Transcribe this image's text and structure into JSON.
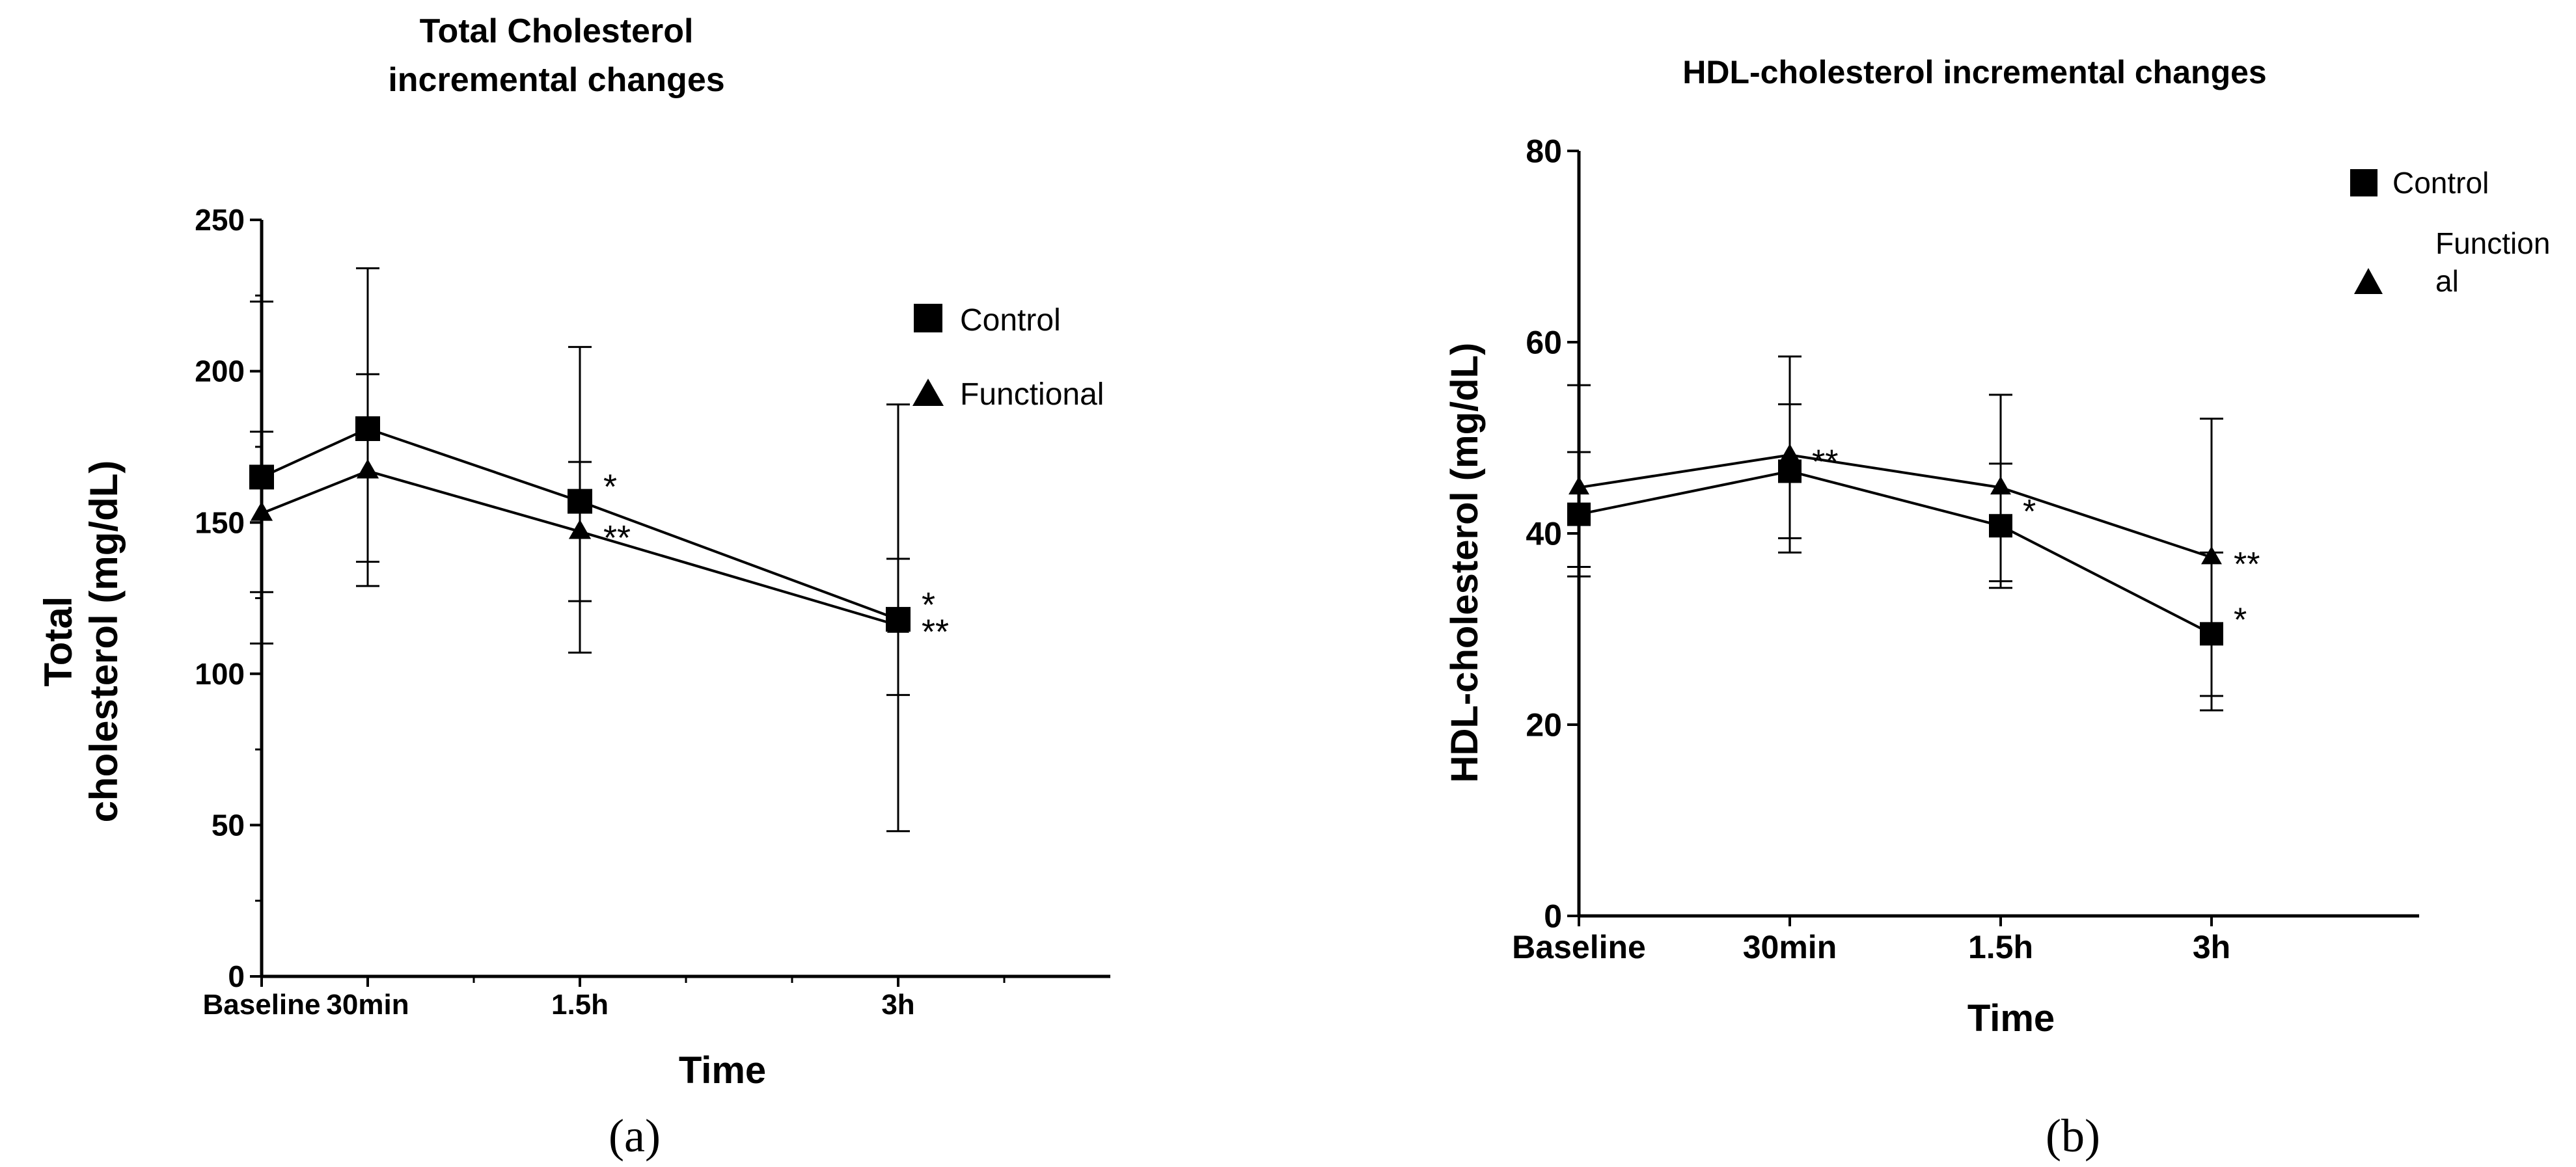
{
  "chart_data": [
    {
      "type": "line",
      "title_lines": [
        "Total Cholesterol",
        "incremental changes"
      ],
      "xlabel": "Time",
      "ylabel_lines": [
        "Total",
        "cholesterol  (mg/dL)"
      ],
      "categories": [
        "Baseline",
        "30min",
        "1.5h",
        "3h"
      ],
      "x": [
        0,
        0.5,
        1.5,
        3
      ],
      "xlim": [
        0,
        4
      ],
      "ylim": [
        0,
        250
      ],
      "yticks": [
        "0",
        "50",
        "100",
        "150",
        "200",
        "250"
      ],
      "grid": false,
      "legend_position": "top-right",
      "panel_label": "(a)",
      "series": [
        {
          "name": "Control",
          "marker": "square",
          "values": [
            165,
            181,
            157,
            118
          ],
          "error_high": [
            223,
            234,
            208,
            189
          ],
          "error_low": [
            110,
            129,
            107,
            48
          ],
          "annotations": [
            "",
            "",
            "*",
            "*"
          ]
        },
        {
          "name": "Functional",
          "marker": "triangle",
          "values": [
            153,
            167,
            147,
            116
          ],
          "error_high": [
            180,
            199,
            170,
            138
          ],
          "error_low": [
            127,
            137,
            124,
            93
          ],
          "annotations": [
            "",
            "",
            "**",
            "**"
          ]
        }
      ]
    },
    {
      "type": "line",
      "title_lines": [
        "HDL-cholesterol incremental changes"
      ],
      "xlabel": "Time",
      "ylabel_lines": [
        "HDL-cholesterol (mg/dL)"
      ],
      "categories": [
        "Baseline",
        "30min",
        "1.5h",
        "3h"
      ],
      "x": [
        0,
        1,
        2,
        3
      ],
      "xlim": [
        0,
        4
      ],
      "ylim": [
        0,
        80
      ],
      "yticks": [
        "0",
        "20",
        "40",
        "60",
        "80"
      ],
      "grid": false,
      "legend_position": "top-right",
      "panel_label": "(b)",
      "series": [
        {
          "name": "Control",
          "marker": "square",
          "values": [
            42,
            46.5,
            40.8,
            29.5
          ],
          "error_high": [
            48.5,
            53.5,
            47.3,
            38
          ],
          "error_low": [
            35.5,
            39.5,
            34.3,
            21.5
          ],
          "annotations": [
            "",
            "",
            "*",
            "*"
          ]
        },
        {
          "name": "Function\nal",
          "marker": "triangle",
          "values": [
            44.8,
            48.2,
            44.8,
            37.5
          ],
          "error_high": [
            55.5,
            58.5,
            54.5,
            52
          ],
          "error_low": [
            36.5,
            38,
            35,
            23
          ],
          "annotations": [
            "",
            "**",
            "",
            "**"
          ]
        }
      ]
    }
  ]
}
